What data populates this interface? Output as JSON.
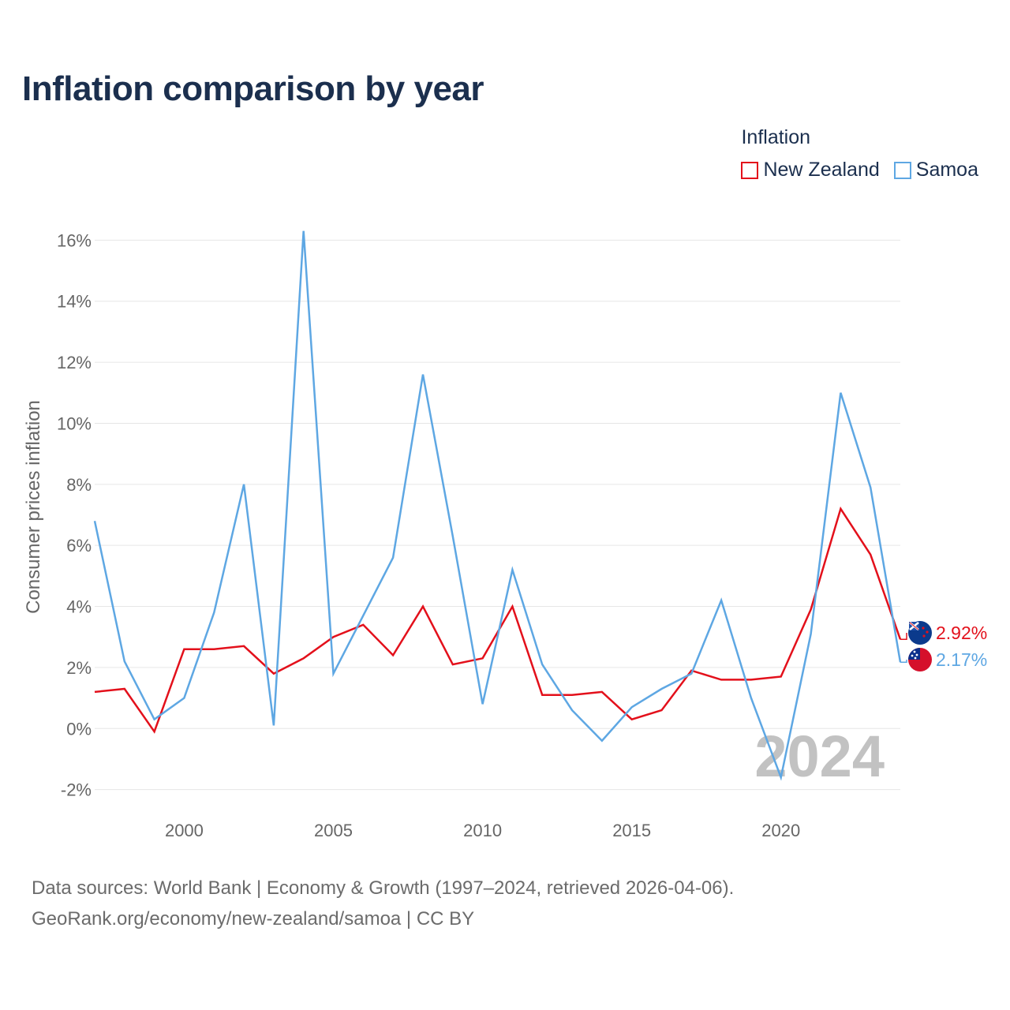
{
  "title": "Inflation comparison by year",
  "legend": {
    "title": "Inflation",
    "items": [
      {
        "name": "New Zealand",
        "color": "#e3101b"
      },
      {
        "name": "Samoa",
        "color": "#5ea7e3"
      }
    ]
  },
  "source": {
    "line1": "Data sources: World Bank | Economy & Growth (1997–2024, retrieved 2026-04-06).",
    "line2": "GeoRank.org/economy/new-zealand/samoa | CC BY"
  },
  "chart_data": {
    "type": "line",
    "title": "Inflation comparison by year",
    "xlabel": "",
    "ylabel": "Consumer prices inflation",
    "xlim": [
      1997,
      2024
    ],
    "ylim": [
      -2.5,
      16.5
    ],
    "yticks": [
      -2,
      0,
      2,
      4,
      6,
      8,
      10,
      12,
      14,
      16
    ],
    "ytick_labels": [
      "-2%",
      "0%",
      "2%",
      "4%",
      "6%",
      "8%",
      "10%",
      "12%",
      "14%",
      "16%"
    ],
    "xticks": [
      2000,
      2005,
      2010,
      2015,
      2020
    ],
    "xtick_labels": [
      "2000",
      "2005",
      "2010",
      "2015",
      "2020"
    ],
    "grid": true,
    "year_watermark": "2024",
    "x": [
      1997,
      1998,
      1999,
      2000,
      2001,
      2002,
      2003,
      2004,
      2005,
      2006,
      2007,
      2008,
      2009,
      2010,
      2011,
      2012,
      2013,
      2014,
      2015,
      2016,
      2017,
      2018,
      2019,
      2020,
      2021,
      2022,
      2023,
      2024
    ],
    "series": [
      {
        "name": "New Zealand",
        "color": "#e3101b",
        "end_label": "2.92%",
        "values": [
          1.2,
          1.3,
          -0.1,
          2.6,
          2.6,
          2.7,
          1.8,
          2.3,
          3.0,
          3.4,
          2.4,
          4.0,
          2.1,
          2.3,
          4.0,
          1.1,
          1.1,
          1.2,
          0.3,
          0.6,
          1.9,
          1.6,
          1.6,
          1.7,
          3.9,
          7.2,
          5.7,
          2.92
        ]
      },
      {
        "name": "Samoa",
        "color": "#5ea7e3",
        "end_label": "2.17%",
        "values": [
          6.8,
          2.2,
          0.3,
          1.0,
          3.8,
          8.0,
          0.1,
          16.3,
          1.8,
          3.7,
          5.6,
          11.6,
          6.3,
          0.8,
          5.2,
          2.1,
          0.6,
          -0.4,
          0.7,
          1.3,
          1.8,
          4.2,
          1.0,
          -1.6,
          3.1,
          11.0,
          7.9,
          2.17
        ]
      }
    ]
  }
}
